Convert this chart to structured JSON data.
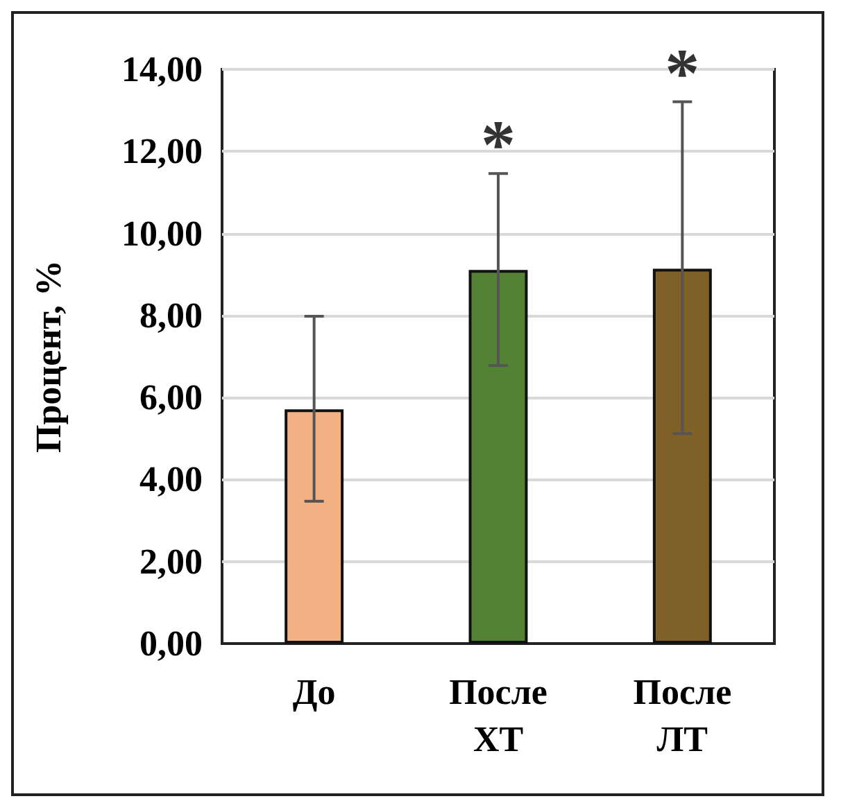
{
  "chart_data": {
    "type": "bar",
    "ylabel": "Процент, %",
    "categories": [
      "До",
      "После\nХТ",
      "После\nЛТ"
    ],
    "values": [
      5.71,
      9.11,
      9.14
    ],
    "colors": [
      "#f4b183",
      "#548235",
      "#7f6128"
    ],
    "errors": [
      [
        3.47,
        7.98
      ],
      [
        6.78,
        11.46
      ],
      [
        5.12,
        13.21
      ]
    ],
    "ylim": [
      0,
      14
    ],
    "yticks": [
      {
        "value": 0,
        "label": "0,00"
      },
      {
        "value": 2,
        "label": "2,00"
      },
      {
        "value": 4,
        "label": "4,00"
      },
      {
        "value": 6,
        "label": "6,00"
      },
      {
        "value": 8,
        "label": "8,00"
      },
      {
        "value": 10,
        "label": "10,00"
      },
      {
        "value": 12,
        "label": "12,00"
      },
      {
        "value": 14,
        "label": "14,00"
      }
    ],
    "grid": "y",
    "annotations": [
      "*",
      "*"
    ]
  }
}
